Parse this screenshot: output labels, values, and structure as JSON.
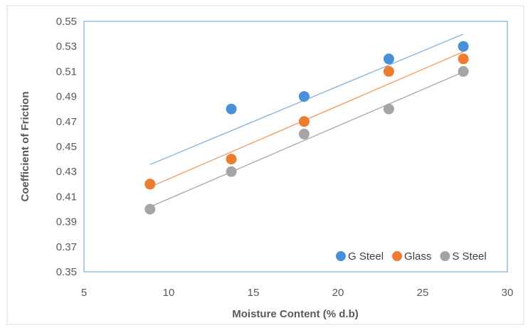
{
  "chart_data": {
    "type": "scatter",
    "xlabel": "Moisture Content (% d.b)",
    "ylabel": "Coefficient  of Friction",
    "xlim": [
      5,
      30
    ],
    "ylim": [
      0.35,
      0.55
    ],
    "x_ticks": [
      "5",
      "10",
      "15",
      "20",
      "25",
      "30"
    ],
    "y_ticks": [
      "0.35",
      "0.37",
      "0.39",
      "0.41",
      "0.43",
      "0.45",
      "0.47",
      "0.49",
      "0.51",
      "0.53",
      "0.55"
    ],
    "grid": false,
    "legend_position": "bottom-right",
    "trendlines": true,
    "series": [
      {
        "name": "G Steel",
        "color": "#4a90d9",
        "line_color": "#7fb0df",
        "x": [
          8.9,
          13.7,
          18,
          23,
          27.4
        ],
        "y": [
          0.42,
          0.48,
          0.49,
          0.52,
          0.53
        ]
      },
      {
        "name": "Glass",
        "color": "#ed7d31",
        "line_color": "#f09a5d",
        "x": [
          8.9,
          13.7,
          18,
          23,
          27.4
        ],
        "y": [
          0.42,
          0.44,
          0.47,
          0.51,
          0.52
        ]
      },
      {
        "name": "S Steel",
        "color": "#a5a5a5",
        "line_color": "#a5a5a5",
        "x": [
          8.9,
          13.7,
          18,
          23,
          27.4
        ],
        "y": [
          0.4,
          0.43,
          0.46,
          0.48,
          0.51
        ]
      }
    ]
  }
}
